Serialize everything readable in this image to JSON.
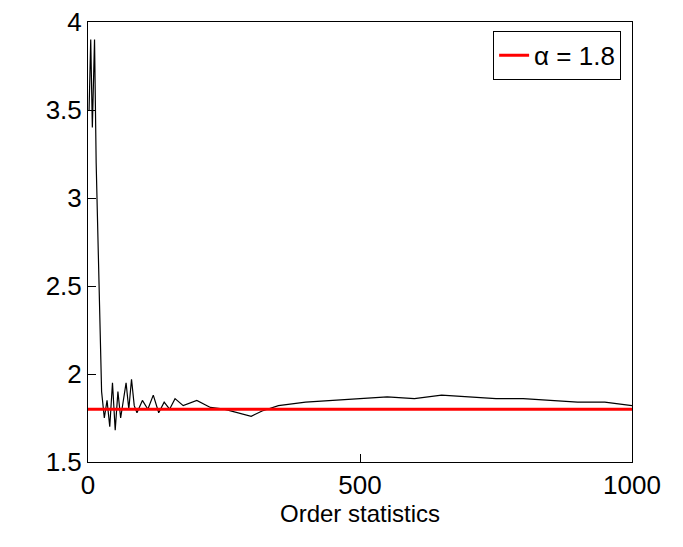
{
  "chart_data": {
    "type": "line",
    "x_label": "Order statistics",
    "x": [
      0,
      2,
      5,
      8,
      12,
      15,
      20,
      25,
      30,
      35,
      40,
      45,
      50,
      55,
      60,
      65,
      70,
      75,
      80,
      85,
      90,
      100,
      110,
      120,
      130,
      140,
      150,
      160,
      175,
      200,
      225,
      250,
      275,
      300,
      320,
      350,
      400,
      450,
      500,
      550,
      600,
      650,
      700,
      750,
      800,
      850,
      900,
      950,
      1000
    ],
    "series": [
      {
        "color": "#000000",
        "values": [
          null,
          3.5,
          3.9,
          3.4,
          3.9,
          3.2,
          2.5,
          1.9,
          1.75,
          1.85,
          1.7,
          1.95,
          1.68,
          1.9,
          1.75,
          1.85,
          1.95,
          1.8,
          1.97,
          1.82,
          1.78,
          1.85,
          1.8,
          1.88,
          1.78,
          1.84,
          1.8,
          1.86,
          1.82,
          1.85,
          1.81,
          1.8,
          1.78,
          1.76,
          1.79,
          1.82,
          1.84,
          1.85,
          1.86,
          1.87,
          1.86,
          1.88,
          1.87,
          1.86,
          1.86,
          1.85,
          1.84,
          1.84,
          1.82
        ]
      },
      {
        "name": "α = 1.8",
        "color": "#ff0000",
        "values": [
          1.8,
          1.8,
          1.8,
          1.8,
          1.8,
          1.8,
          1.8,
          1.8,
          1.8,
          1.8,
          1.8,
          1.8,
          1.8,
          1.8,
          1.8,
          1.8,
          1.8,
          1.8,
          1.8,
          1.8,
          1.8,
          1.8,
          1.8,
          1.8,
          1.8,
          1.8,
          1.8,
          1.8,
          1.8,
          1.8,
          1.8,
          1.8,
          1.8,
          1.8,
          1.8,
          1.8,
          1.8,
          1.8,
          1.8,
          1.8,
          1.8,
          1.8,
          1.8,
          1.8,
          1.8,
          1.8,
          1.8,
          1.8,
          1.8
        ]
      }
    ],
    "xlim": [
      0,
      1000
    ],
    "xticks": [
      0,
      500,
      1000
    ],
    "ylim": [
      1.5,
      4
    ],
    "yticks": [
      1.5,
      2,
      2.5,
      3,
      3.5,
      4
    ],
    "legend": "top right",
    "grid": false
  }
}
